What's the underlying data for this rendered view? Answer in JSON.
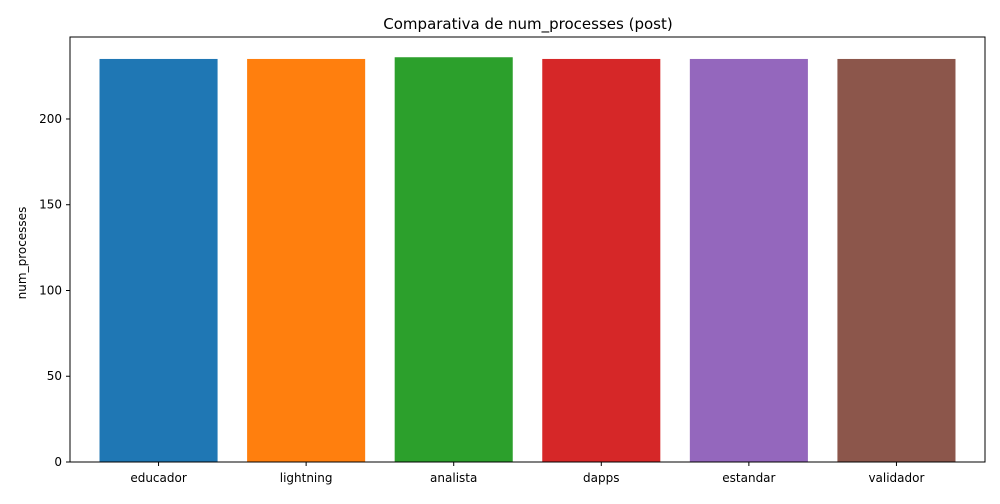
{
  "chart_data": {
    "type": "bar",
    "title": "Comparativa de num_processes (post)",
    "xlabel": "",
    "ylabel": "num_processes",
    "categories": [
      "educador",
      "lightning",
      "analista",
      "dapps",
      "estandar",
      "validador"
    ],
    "values": [
      235,
      235,
      236,
      235,
      235,
      235
    ],
    "colors": [
      "#1f77b4",
      "#ff7f0e",
      "#2ca02c",
      "#d62728",
      "#9467bd",
      "#8c564b"
    ],
    "ylim": [
      0,
      247.8
    ],
    "yticks": [
      0,
      50,
      100,
      150,
      200
    ],
    "grid": false
  }
}
